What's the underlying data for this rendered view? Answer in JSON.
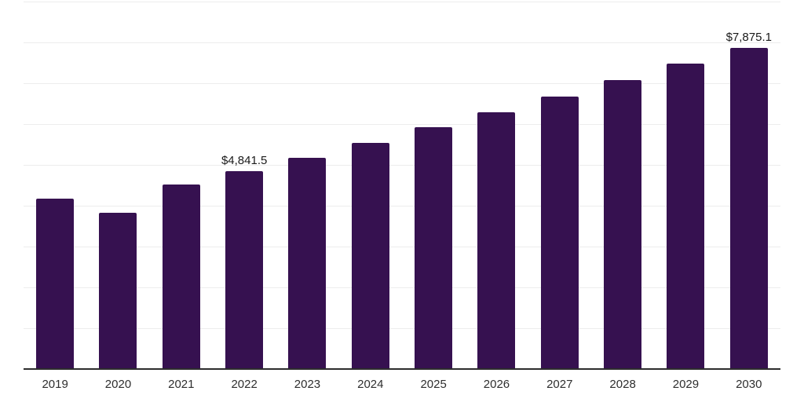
{
  "chart_data": {
    "type": "bar",
    "title": "",
    "xlabel": "",
    "ylabel": "",
    "categories": [
      "2019",
      "2020",
      "2021",
      "2022",
      "2023",
      "2024",
      "2025",
      "2026",
      "2027",
      "2028",
      "2029",
      "2030"
    ],
    "values": [
      4170,
      3825,
      4515,
      4841.5,
      5170,
      5535,
      5915,
      6285,
      6665,
      7075,
      7480,
      7875.1
    ],
    "ylim": [
      0,
      9000
    ],
    "gridline_step": 1000,
    "grid": true,
    "legend": false,
    "y_axis_labels_visible": false,
    "data_labels": [
      {
        "category": "2022",
        "text": "$4,841.5"
      },
      {
        "category": "2030",
        "text": "$7,875.1"
      }
    ],
    "colors": {
      "bar": "#361150",
      "axis_line": "#2d2d2d",
      "gridline": "#ededed",
      "data_label": "#1a1a1a",
      "tick_label": "#2e2e2e",
      "background": "#ffffff"
    }
  }
}
